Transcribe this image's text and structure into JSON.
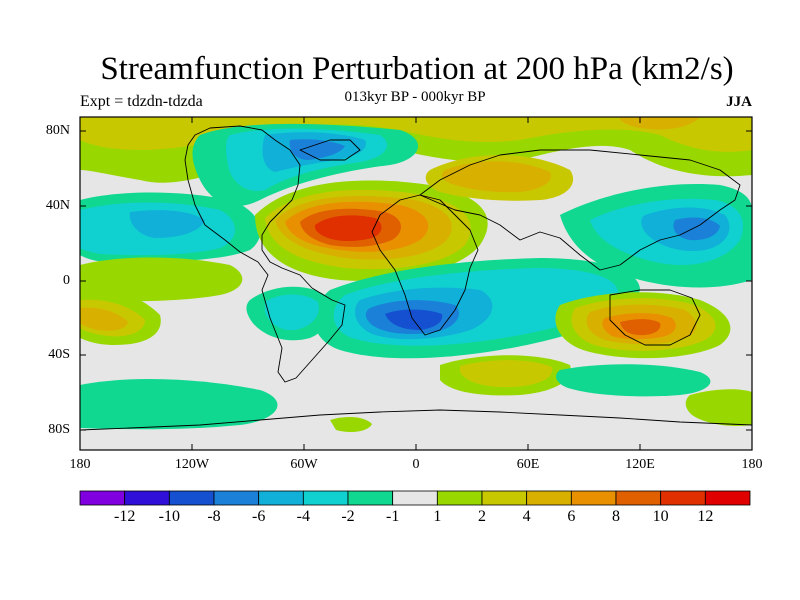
{
  "title": "Streamfunction Perturbation at 200 hPa (km2/s)",
  "subtitle": "013kyr BP - 000kyr BP",
  "left_label": "Expt = tdzdn-tdzda",
  "right_label": "JJA",
  "axes": {
    "y_labels": [
      "80N",
      "40N",
      "0",
      "40S",
      "80S"
    ],
    "x_labels": [
      "180",
      "120W",
      "60W",
      "0",
      "60E",
      "120E",
      "180"
    ]
  },
  "colorbar": {
    "colors": [
      "#8000e0",
      "#3010d8",
      "#1450d0",
      "#1a80d8",
      "#10b0d8",
      "#10d0d0",
      "#10d890",
      "#e6e6e6",
      "#98d800",
      "#c8c800",
      "#d8b000",
      "#e89000",
      "#e06000",
      "#e03000",
      "#e00000"
    ],
    "labels": [
      "-12",
      "-10",
      "-8",
      "-6",
      "-4",
      "-2",
      "-1",
      "1",
      "2",
      "4",
      "6",
      "8",
      "10",
      "12"
    ]
  },
  "colors": {
    "background": "#e6e6e6",
    "coast": "#000000"
  }
}
